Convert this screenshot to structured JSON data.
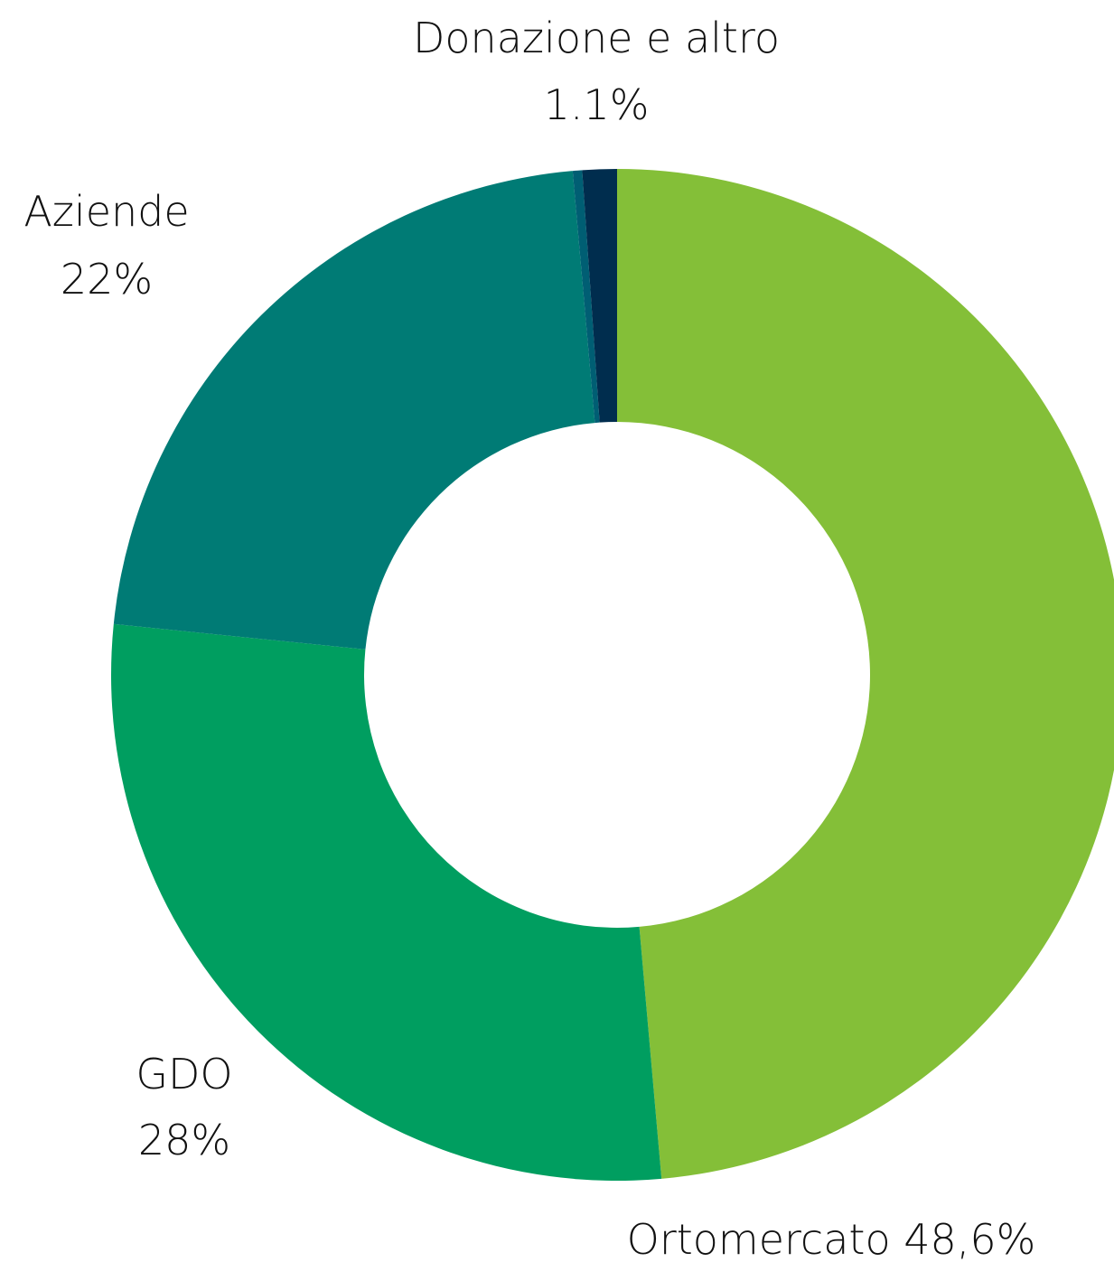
{
  "chart_data": {
    "type": "pie",
    "variant": "donut",
    "title": "",
    "slices": [
      {
        "name": "Ortomercato",
        "value": 48.6,
        "label": "Ortomercato 48,6%",
        "color": "#84BF38"
      },
      {
        "name": "GDO",
        "value": 28,
        "label_name": "GDO",
        "label_value": "28%",
        "color": "#009E60"
      },
      {
        "name": "Aziende",
        "value": 22,
        "label_name": "Aziende",
        "label_value": "22%",
        "color": "#007B75"
      },
      {
        "name": "Donazione e altro (a)",
        "value": 0.3,
        "color": "#005E73"
      },
      {
        "name": "Donazione e altro",
        "value": 1.1,
        "label_name": "Donazione e altro",
        "label_value": "1.1%",
        "color": "#002D4E"
      }
    ],
    "legend": "none"
  }
}
